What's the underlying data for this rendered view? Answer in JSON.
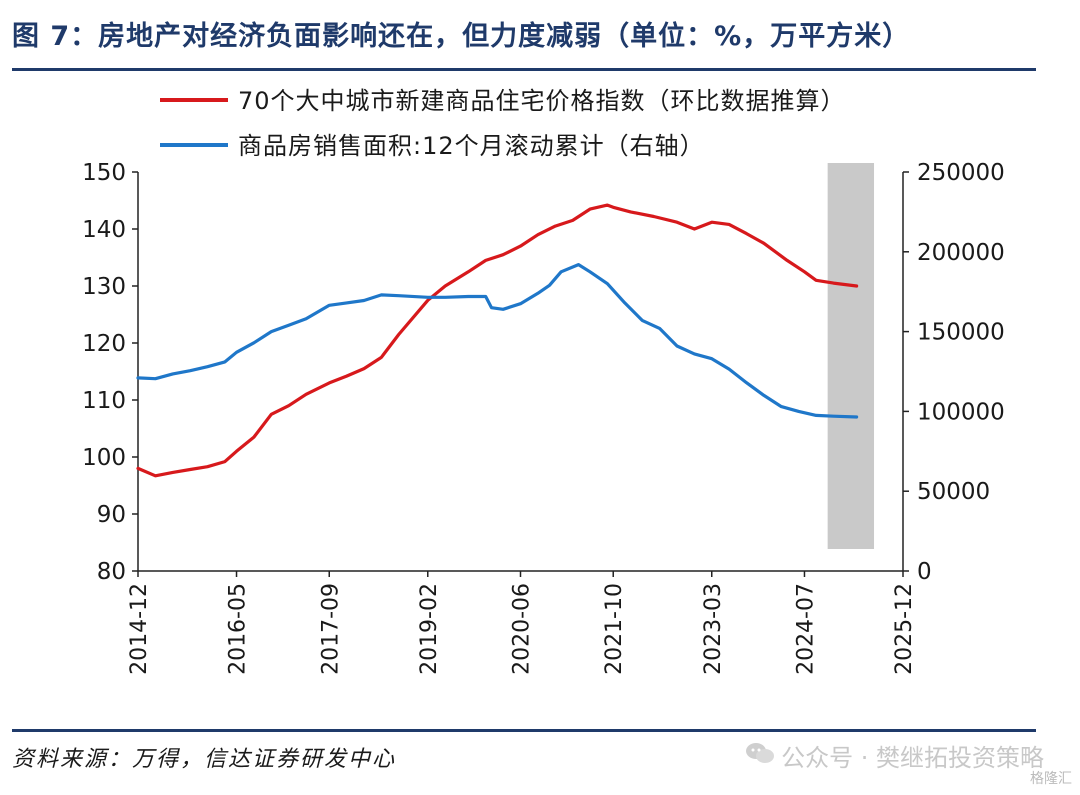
{
  "header": {
    "title": "图 7：房地产对经济负面影响还在，但力度减弱（单位：%，万平方米）"
  },
  "footer": {
    "source": "资料来源：万得，信达证券研发中心",
    "watermark": "公众号 · 樊继拓投资策略",
    "watermark_badge": "格隆汇"
  },
  "colors": {
    "price_series": "#d7191c",
    "area_series": "#1f77c9",
    "shade": "#c9c9c9",
    "title": "#1f3a6a"
  },
  "chart_data": {
    "type": "line",
    "legend": [
      "70个大中城市新建商品住宅价格指数（环比数据推算）",
      "商品房销售面积:12个月滚动累计（右轴）"
    ],
    "x_ticks": [
      "2014-12",
      "2016-05",
      "2017-09",
      "2019-02",
      "2020-06",
      "2021-10",
      "2023-03",
      "2024-07",
      "2025-12"
    ],
    "y_left": {
      "ticks": [
        "150",
        "140",
        "130",
        "120",
        "110",
        "100",
        "90",
        "80"
      ],
      "range": [
        80,
        150
      ]
    },
    "y_right": {
      "ticks": [
        "250000",
        "200000",
        "150000",
        "100000",
        "50000",
        "0"
      ],
      "range": [
        0,
        250000
      ]
    },
    "shaded_period": {
      "x_range": [
        "2024-11",
        "2025-07"
      ]
    },
    "series": [
      {
        "name": "70个大中城市新建商品住宅价格指数（环比数据推算）",
        "axis": "left",
        "points": [
          [
            "2014-12",
            98.0
          ],
          [
            "2015-03",
            96.7
          ],
          [
            "2015-06",
            97.3
          ],
          [
            "2015-09",
            97.8
          ],
          [
            "2015-12",
            98.3
          ],
          [
            "2016-03",
            99.2
          ],
          [
            "2016-05",
            101.0
          ],
          [
            "2016-08",
            103.5
          ],
          [
            "2016-11",
            107.5
          ],
          [
            "2017-02",
            109.0
          ],
          [
            "2017-05",
            111.0
          ],
          [
            "2017-09",
            113.0
          ],
          [
            "2017-12",
            114.2
          ],
          [
            "2018-03",
            115.5
          ],
          [
            "2018-06",
            117.5
          ],
          [
            "2018-09",
            121.5
          ],
          [
            "2019-02",
            127.5
          ],
          [
            "2019-05",
            130.0
          ],
          [
            "2019-09",
            132.5
          ],
          [
            "2019-12",
            134.5
          ],
          [
            "2020-03",
            135.5
          ],
          [
            "2020-06",
            137.0
          ],
          [
            "2020-09",
            139.0
          ],
          [
            "2020-12",
            140.5
          ],
          [
            "2021-03",
            141.5
          ],
          [
            "2021-06",
            143.5
          ],
          [
            "2021-09",
            144.2
          ],
          [
            "2021-10",
            143.8
          ],
          [
            "2022-01",
            143.0
          ],
          [
            "2022-05",
            142.2
          ],
          [
            "2022-09",
            141.2
          ],
          [
            "2022-12",
            140.0
          ],
          [
            "2023-03",
            141.2
          ],
          [
            "2023-06",
            140.8
          ],
          [
            "2023-09",
            139.2
          ],
          [
            "2023-12",
            137.5
          ],
          [
            "2024-04",
            134.5
          ],
          [
            "2024-07",
            132.5
          ],
          [
            "2024-09",
            131.0
          ],
          [
            "2024-12",
            130.5
          ],
          [
            "2025-04",
            130.0
          ]
        ]
      },
      {
        "name": "商品房销售面积:12个月滚动累计（右轴）",
        "axis": "right",
        "points": [
          [
            "2014-12",
            121000
          ],
          [
            "2015-03",
            120500
          ],
          [
            "2015-06",
            123500
          ],
          [
            "2015-09",
            125500
          ],
          [
            "2015-12",
            128000
          ],
          [
            "2016-03",
            131000
          ],
          [
            "2016-05",
            137000
          ],
          [
            "2016-08",
            143000
          ],
          [
            "2016-11",
            150000
          ],
          [
            "2017-02",
            154000
          ],
          [
            "2017-05",
            158000
          ],
          [
            "2017-09",
            166500
          ],
          [
            "2017-12",
            168000
          ],
          [
            "2018-03",
            169500
          ],
          [
            "2018-06",
            173000
          ],
          [
            "2018-09",
            172500
          ],
          [
            "2019-02",
            171500
          ],
          [
            "2019-05",
            171500
          ],
          [
            "2019-09",
            172000
          ],
          [
            "2019-12",
            172000
          ],
          [
            "2020-01",
            165000
          ],
          [
            "2020-03",
            164000
          ],
          [
            "2020-06",
            167500
          ],
          [
            "2020-09",
            174000
          ],
          [
            "2020-11",
            179000
          ],
          [
            "2021-01",
            187500
          ],
          [
            "2021-04",
            192000
          ],
          [
            "2021-06",
            187500
          ],
          [
            "2021-09",
            180000
          ],
          [
            "2021-12",
            168000
          ],
          [
            "2022-03",
            157000
          ],
          [
            "2022-06",
            152000
          ],
          [
            "2022-09",
            141000
          ],
          [
            "2022-12",
            136000
          ],
          [
            "2023-03",
            133000
          ],
          [
            "2023-06",
            126500
          ],
          [
            "2023-09",
            118000
          ],
          [
            "2023-12",
            110000
          ],
          [
            "2024-03",
            103000
          ],
          [
            "2024-06",
            100000
          ],
          [
            "2024-09",
            97500
          ],
          [
            "2024-12",
            97000
          ],
          [
            "2025-04",
            96500
          ]
        ]
      }
    ]
  }
}
